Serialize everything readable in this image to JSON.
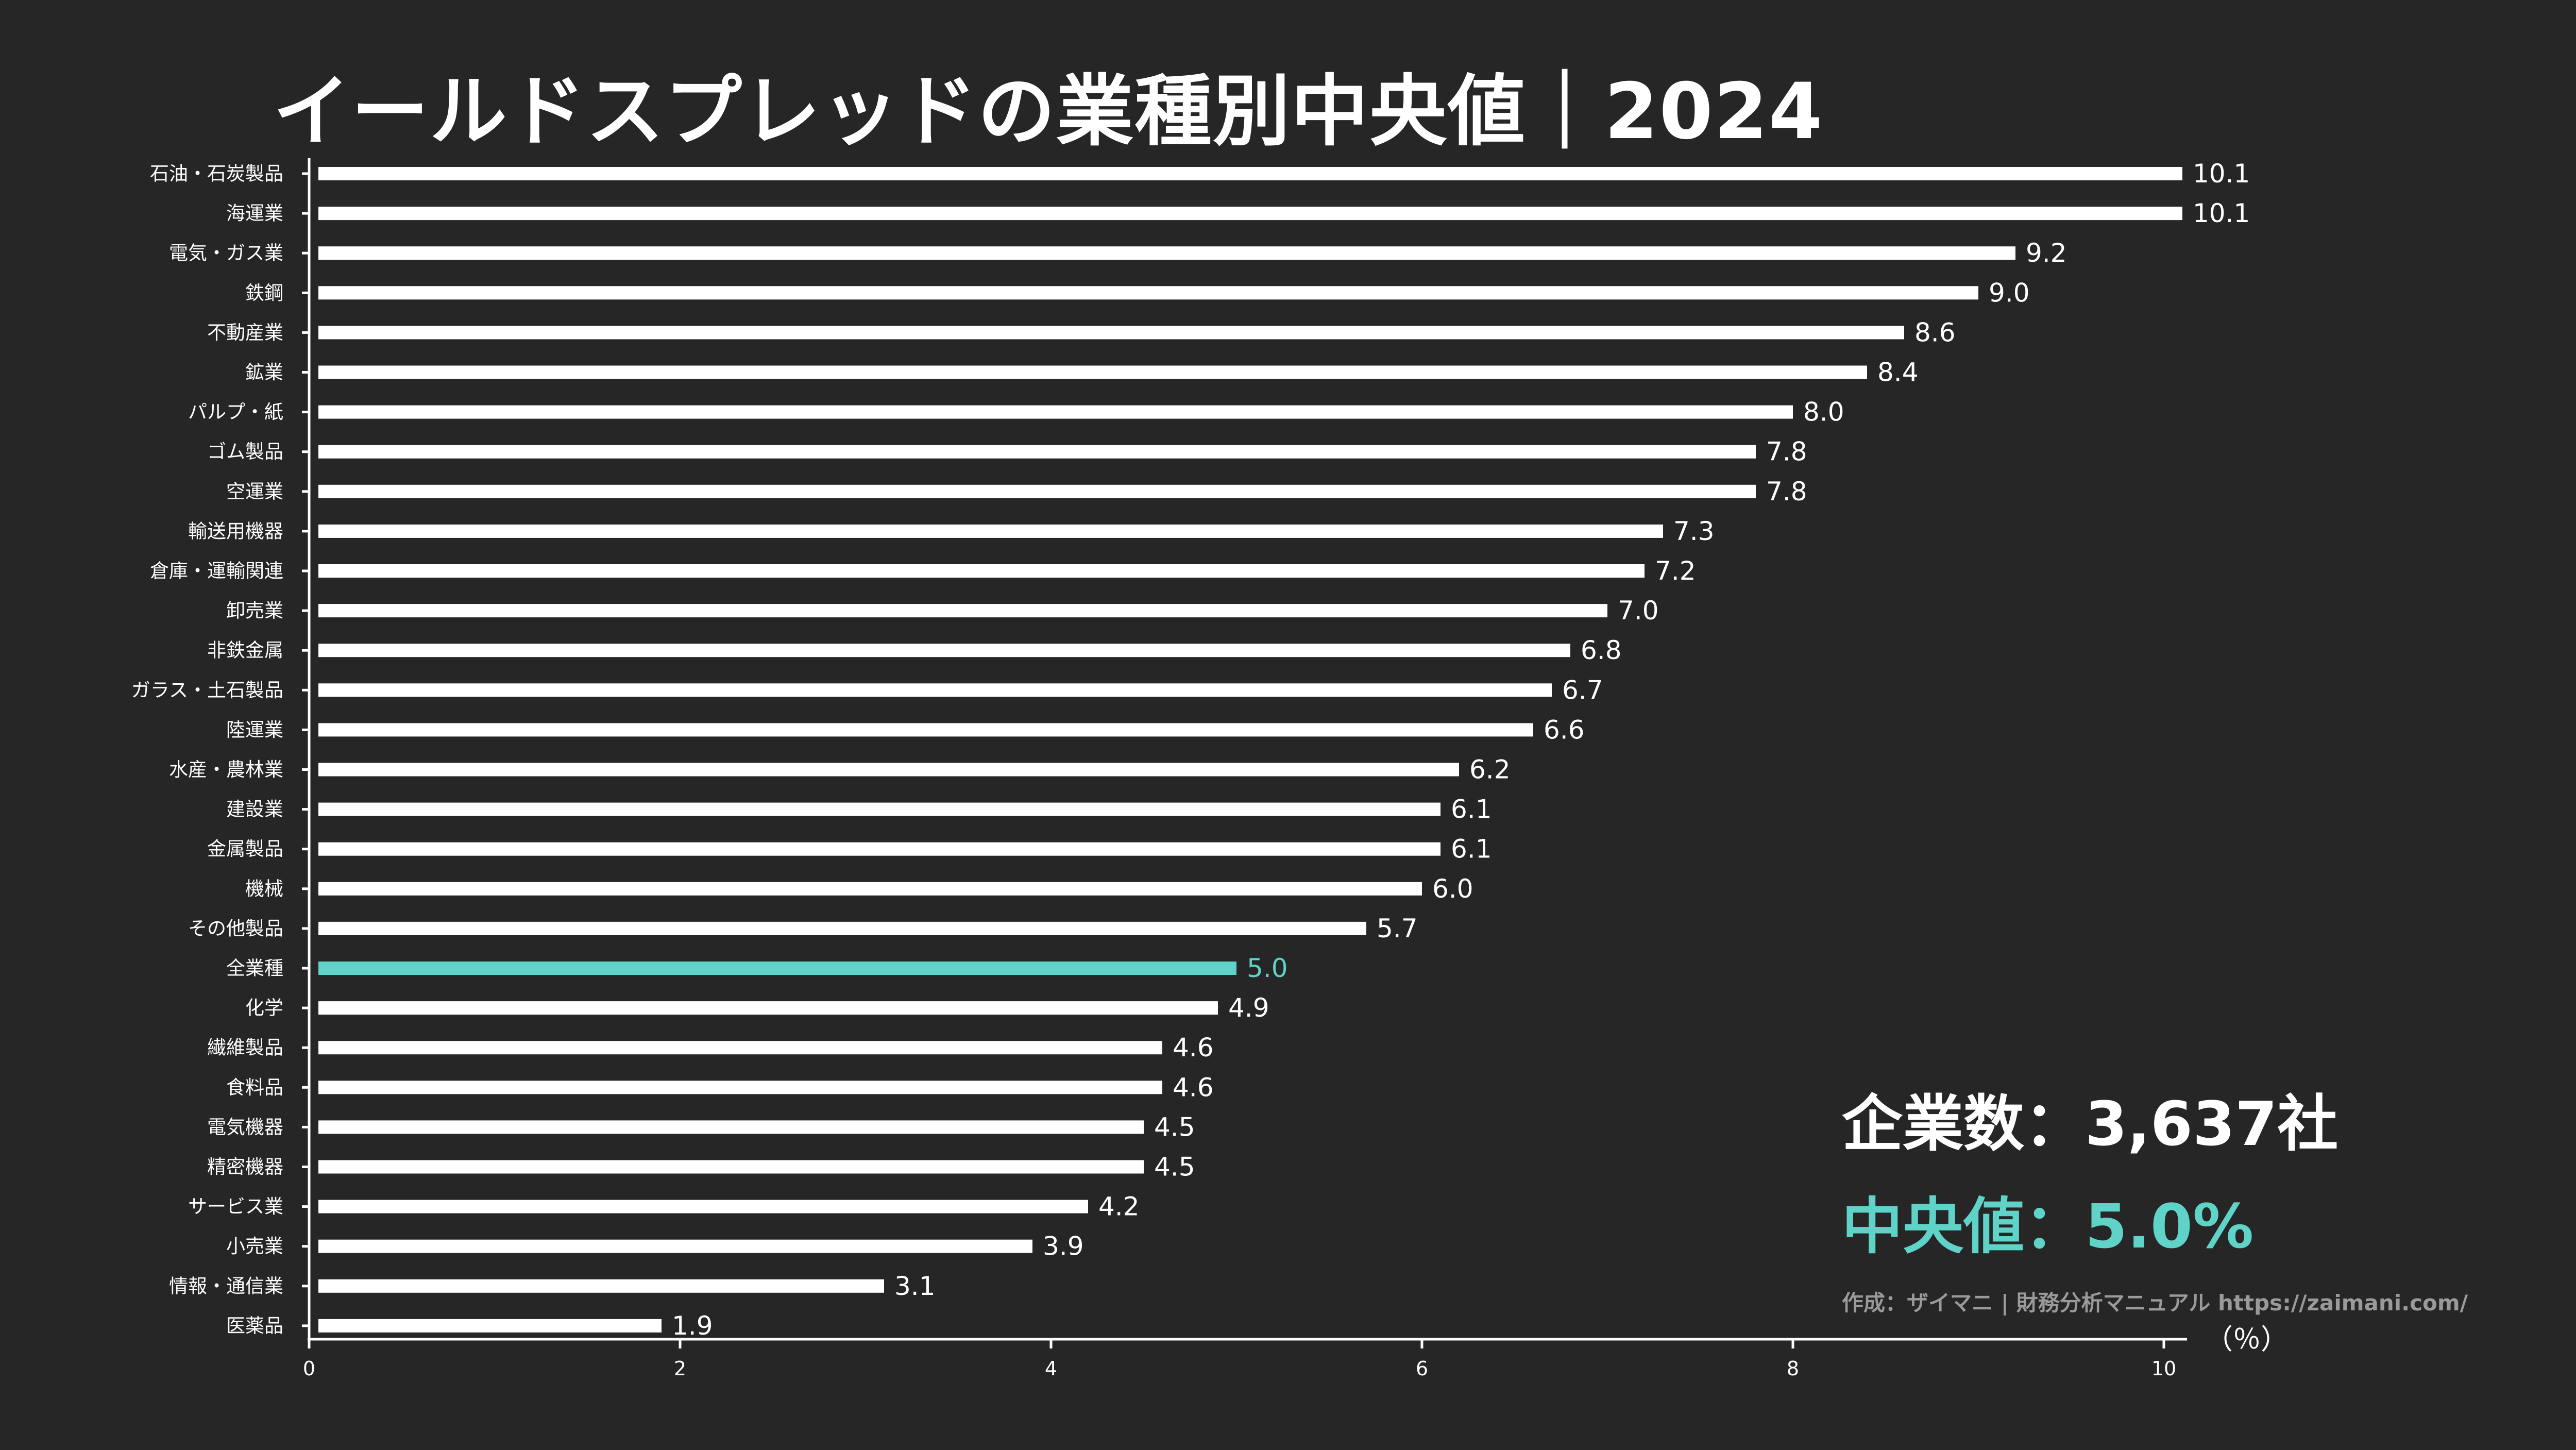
{
  "title": "イールドスプレッドの業種別中央値｜2024",
  "annotation": {
    "company_count": "企業数：3,637社",
    "median": "中央値：5.0%",
    "credit": "作成：ザイマニ | 財務分析マニュアル https://zaimani.com/"
  },
  "colors": {
    "background": "#262626",
    "bar": "#ffffff",
    "highlight": "#5fd3c8",
    "axis": "#ffffff",
    "credit": "#9a9a9a"
  },
  "chart_data": {
    "type": "bar",
    "orientation": "horizontal",
    "title": "イールドスプレッドの業種別中央値｜2024",
    "xlabel": "（％）",
    "ylabel": "",
    "xlim": [
      0,
      10
    ],
    "xticks": [
      0,
      2,
      4,
      6,
      8,
      10
    ],
    "highlight_category": "全業種",
    "categories": [
      "石油・石炭製品",
      "海運業",
      "電気・ガス業",
      "鉄鋼",
      "不動産業",
      "鉱業",
      "パルプ・紙",
      "ゴム製品",
      "空運業",
      "輸送用機器",
      "倉庫・運輸関連",
      "卸売業",
      "非鉄金属",
      "ガラス・土石製品",
      "陸運業",
      "水産・農林業",
      "建設業",
      "金属製品",
      "機械",
      "その他製品",
      "全業種",
      "化学",
      "繊維製品",
      "食料品",
      "電気機器",
      "精密機器",
      "サービス業",
      "小売業",
      "情報・通信業",
      "医薬品"
    ],
    "values": [
      10.1,
      10.1,
      9.2,
      9.0,
      8.6,
      8.4,
      8.0,
      7.8,
      7.8,
      7.3,
      7.2,
      7.0,
      6.8,
      6.7,
      6.6,
      6.2,
      6.1,
      6.1,
      6.0,
      5.7,
      5.0,
      4.9,
      4.6,
      4.6,
      4.5,
      4.5,
      4.2,
      3.9,
      3.1,
      1.9
    ],
    "labels": [
      "10.1",
      "10.1",
      "9.2",
      "9.0",
      "8.6",
      "8.4",
      "8.0",
      "7.8",
      "7.8",
      "7.3",
      "7.2",
      "7.0",
      "6.8",
      "6.7",
      "6.6",
      "6.2",
      "6.1",
      "6.1",
      "6.0",
      "5.7",
      "5.0",
      "4.9",
      "4.6",
      "4.6",
      "4.5",
      "4.5",
      "4.2",
      "3.9",
      "3.1",
      "1.9"
    ],
    "legend": "none",
    "grid": false
  }
}
